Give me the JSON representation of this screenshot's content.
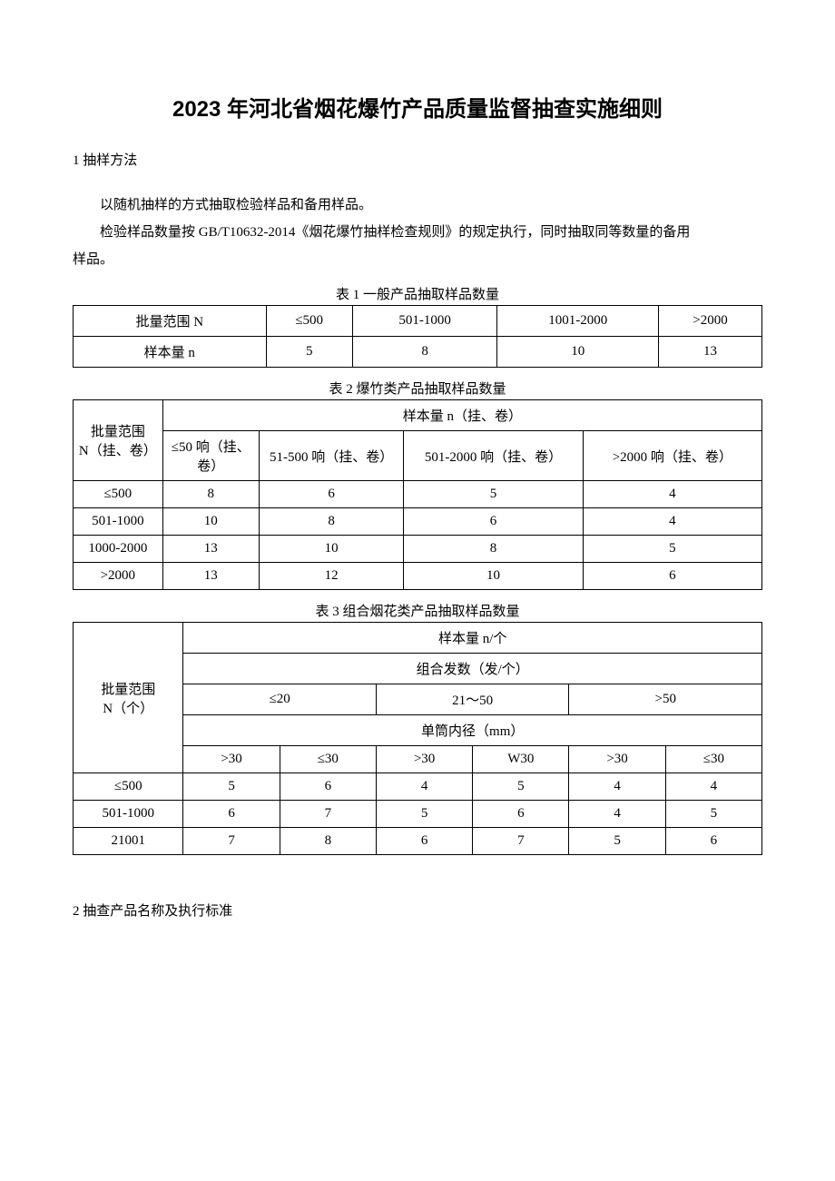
{
  "title": "2023 年河北省烟花爆竹产品质量监督抽查实施细则",
  "section1": {
    "heading": "1 抽样方法",
    "p1": "以随机抽样的方式抽取检验样品和备用样品。",
    "p2a": "检验样品数量按 GB/T10632-2014《烟花爆竹抽样检查规则》的规定执行，同时抽取同等数量的备用",
    "p2b": "样品。"
  },
  "table1": {
    "caption": "表 1 一般产品抽取样品数量",
    "rows": [
      [
        "批量范围 N",
        "≤500",
        "501-1000",
        "1001-2000",
        ">2000"
      ],
      [
        "样本量 n",
        "5",
        "8",
        "10",
        "13"
      ]
    ]
  },
  "table2": {
    "caption": "表 2 爆竹类产品抽取样品数量",
    "header_col": "批量范围\nN（挂、卷）",
    "header_span": "样本量 n（挂、卷）",
    "subheaders": [
      "≤50 响（挂、卷）",
      "51-500 响（挂、卷）",
      "501-2000 响（挂、卷）",
      ">2000 响（挂、卷）"
    ],
    "rows": [
      [
        "≤500",
        "8",
        "6",
        "5",
        "4"
      ],
      [
        "501-1000",
        "10",
        "8",
        "6",
        "4"
      ],
      [
        "1000-2000",
        "13",
        "10",
        "8",
        "5"
      ],
      [
        ">2000",
        "13",
        "12",
        "10",
        "6"
      ]
    ]
  },
  "table3": {
    "caption": "表 3 组合烟花类产品抽取样品数量",
    "header_col": "批量范围\nN（个）",
    "r1": "样本量 n/个",
    "r2": "组合发数（发/个）",
    "r3": [
      "≤20",
      "21～50",
      ">50"
    ],
    "r4": "单筒内径（mm）",
    "r5": [
      ">30",
      "≤30",
      ">30",
      "W30",
      ">30",
      "≤30"
    ],
    "rows": [
      [
        "≤500",
        "5",
        "6",
        "4",
        "5",
        "4",
        "4"
      ],
      [
        "501-1000",
        "6",
        "7",
        "5",
        "6",
        "4",
        "5"
      ],
      [
        "21001",
        "7",
        "8",
        "6",
        "7",
        "5",
        "6"
      ]
    ]
  },
  "section2": {
    "heading": "2 抽查产品名称及执行标准"
  }
}
